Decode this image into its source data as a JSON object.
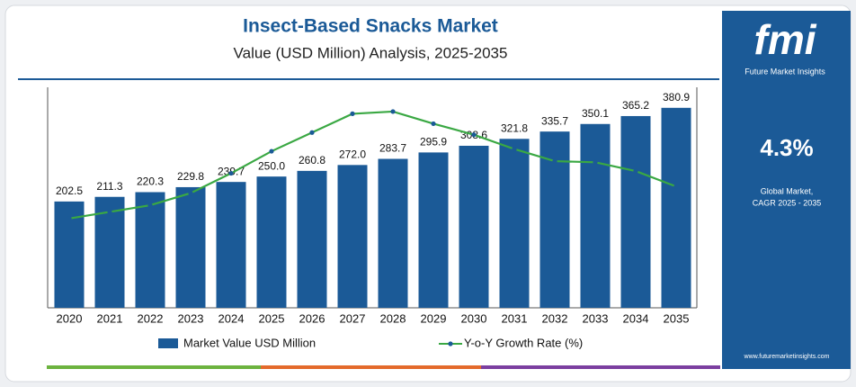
{
  "chart_data": {
    "type": "bar",
    "title": "Insect-Based Snacks Market",
    "subtitle": "Value (USD Million) Analysis, 2025-2035",
    "categories": [
      "2020",
      "2021",
      "2022",
      "2023",
      "2024",
      "2025",
      "2026",
      "2027",
      "2028",
      "2029",
      "2030",
      "2031",
      "2032",
      "2033",
      "2034",
      "2035"
    ],
    "series": [
      {
        "name": "Market Value USD Million",
        "type": "bar",
        "color": "#1b5a97",
        "values": [
          202.5,
          211.3,
          220.3,
          229.8,
          239.7,
          250.0,
          260.8,
          272.0,
          283.7,
          295.9,
          308.6,
          321.8,
          335.7,
          350.1,
          365.2,
          380.9
        ],
        "value_labels": [
          "202.5",
          "211.3",
          "220.3",
          "229.8",
          "239.7",
          "250.0",
          "260.8",
          "272.0",
          "283.7",
          "295.9",
          "308.6",
          "321.8",
          "335.7",
          "350.1",
          "365.2",
          "380.9"
        ]
      },
      {
        "name": "Y-o-Y Growth Rate (%)",
        "type": "line",
        "color": "#3aa843",
        "axis": "y2",
        "values": [
          4.281,
          4.287,
          4.293,
          4.304,
          4.322,
          4.342,
          4.359,
          4.376,
          4.378,
          4.367,
          4.357,
          4.344,
          4.333,
          4.332,
          4.324,
          4.31
        ]
      }
    ],
    "ylim": [
      0,
      420
    ],
    "y2lim": [
      4.2,
      4.4
    ]
  },
  "sidebar": {
    "logo": "fmi",
    "tagline": "Future Market Insights",
    "cagr": "4.3%",
    "cagr_caption": [
      "Global Market,",
      "CAGR 2025 - 2035"
    ],
    "website": "www.futuremarketinsights.com"
  }
}
